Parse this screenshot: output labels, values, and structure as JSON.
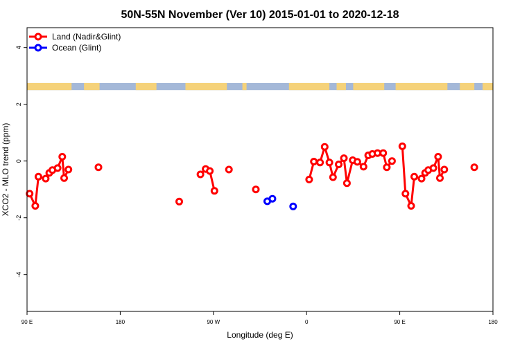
{
  "chart_data": {
    "type": "line",
    "title": "50N-55N November (Ver 10)   2015-01-01 to 2020-12-18",
    "xlabel": "Longitude (deg E)",
    "ylabel": "XCO2 - MLO trend (ppm)",
    "xlim": [
      90,
      540
    ],
    "ylim": [
      -5.3,
      4.7
    ],
    "x_ticks": [
      {
        "value": 90,
        "label": "90 E"
      },
      {
        "value": 180,
        "label": "180"
      },
      {
        "value": 270,
        "label": "90 W"
      },
      {
        "value": 360,
        "label": "0"
      },
      {
        "value": 450,
        "label": "90 E"
      },
      {
        "value": 540,
        "label": "180"
      }
    ],
    "y_ticks": [
      -4,
      -2,
      0,
      2,
      4
    ],
    "legend_position": "top-left",
    "colors": {
      "land": "#ff0000",
      "ocean": "#0000ff",
      "land_band": "#f5d27a",
      "ocean_band": "#a4b8d8"
    },
    "series": [
      {
        "name": "Land (Nadir&Glint)",
        "color": "#ff0000",
        "points": [
          [
            92.5,
            -1.15
          ],
          [
            98.0,
            -1.58
          ],
          [
            101.0,
            -0.55
          ],
          [
            108.0,
            -0.62
          ],
          [
            111.5,
            -0.42
          ],
          [
            114.5,
            -0.32
          ],
          [
            119.5,
            -0.25
          ],
          [
            124.0,
            0.15
          ],
          [
            125.8,
            -0.6
          ],
          [
            130.0,
            -0.3
          ],
          null,
          [
            159.0,
            -0.22
          ],
          null,
          [
            237.0,
            -1.43
          ],
          null,
          [
            257.5,
            -0.47
          ],
          [
            262.5,
            -0.28
          ],
          [
            266.5,
            -0.35
          ],
          [
            271.0,
            -1.05
          ],
          null,
          [
            285.0,
            -0.3
          ],
          null,
          [
            311.0,
            -1.0
          ],
          null,
          [
            362.5,
            -0.65
          ],
          [
            367.0,
            -0.02
          ],
          [
            373.0,
            -0.05
          ],
          [
            377.5,
            0.5
          ],
          [
            382.0,
            -0.05
          ],
          [
            385.5,
            -0.57
          ],
          [
            391.0,
            -0.12
          ],
          [
            396.0,
            0.1
          ],
          [
            399.0,
            -0.78
          ],
          [
            404.5,
            0.03
          ],
          [
            409.0,
            -0.03
          ],
          [
            415.0,
            -0.2
          ],
          [
            419.5,
            0.2
          ],
          [
            423.5,
            0.25
          ],
          [
            428.5,
            0.28
          ],
          [
            434.0,
            0.28
          ],
          [
            437.5,
            -0.22
          ],
          [
            442.5,
            0.0
          ],
          null,
          [
            452.5,
            0.52
          ],
          [
            455.5,
            -1.15
          ],
          [
            461.0,
            -1.58
          ],
          [
            464.0,
            -0.55
          ],
          [
            471.0,
            -0.62
          ],
          [
            474.5,
            -0.42
          ],
          [
            477.5,
            -0.32
          ],
          [
            482.5,
            -0.25
          ],
          [
            487.0,
            0.15
          ],
          [
            488.8,
            -0.6
          ],
          [
            493.0,
            -0.3
          ],
          null,
          [
            522.0,
            -0.22
          ]
        ]
      },
      {
        "name": "Ocean (Glint)",
        "color": "#0000ff",
        "points": [
          [
            322.0,
            -1.42
          ],
          [
            327.0,
            -1.33
          ],
          null,
          [
            347.0,
            -1.6
          ]
        ]
      }
    ],
    "land_ocean_band": {
      "y_range": [
        2.5,
        2.75
      ],
      "land_segments": [
        [
          90,
          133
        ],
        [
          145,
          160
        ],
        [
          195,
          215
        ],
        [
          243,
          283
        ],
        [
          298,
          302
        ],
        [
          343,
          382
        ],
        [
          389,
          398
        ],
        [
          405,
          435
        ],
        [
          446,
          496
        ],
        [
          508,
          522
        ],
        [
          530,
          540
        ]
      ]
    }
  }
}
